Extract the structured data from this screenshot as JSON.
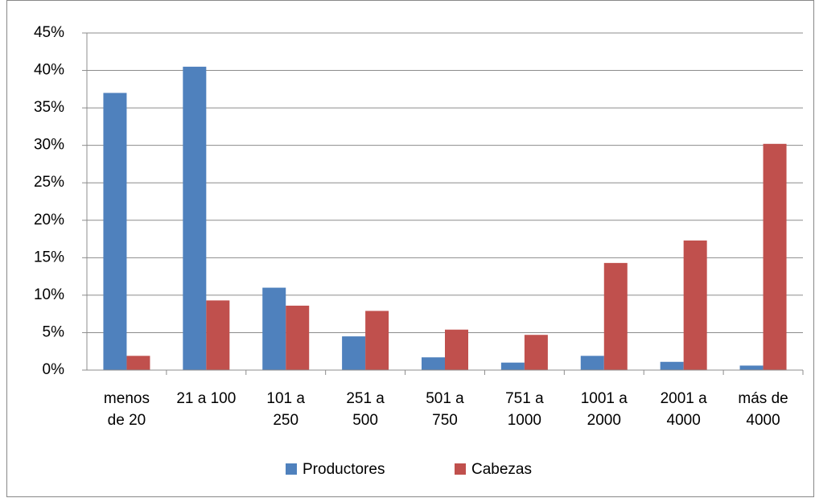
{
  "chart_data": {
    "type": "bar",
    "categories": [
      "menos\nde 20",
      "21 a 100",
      "101 a\n250",
      "251 a\n500",
      "501 a\n750",
      "751 a\n1000",
      "1001 a\n2000",
      "2001 a\n4000",
      "más de\n4000"
    ],
    "series": [
      {
        "name": "Productores",
        "color": "#4f81bd",
        "values": [
          37,
          40.5,
          11,
          4.5,
          1.7,
          1.0,
          1.9,
          1.1,
          0.6
        ]
      },
      {
        "name": "Cabezas",
        "color": "#c0504d",
        "values": [
          1.9,
          9.3,
          8.6,
          7.9,
          5.4,
          4.7,
          14.3,
          17.3,
          30.2
        ]
      }
    ],
    "ylim": [
      0,
      45
    ],
    "yticks": [
      {
        "value": 0,
        "label": "0%"
      },
      {
        "value": 5,
        "label": "5%"
      },
      {
        "value": 10,
        "label": "10%"
      },
      {
        "value": 15,
        "label": "15%"
      },
      {
        "value": 20,
        "label": "20%"
      },
      {
        "value": 25,
        "label": "25%"
      },
      {
        "value": 30,
        "label": "30%"
      },
      {
        "value": 35,
        "label": "35%"
      },
      {
        "value": 40,
        "label": "40%"
      },
      {
        "value": 45,
        "label": "45%"
      }
    ],
    "grid": true,
    "legend": "bottom"
  }
}
